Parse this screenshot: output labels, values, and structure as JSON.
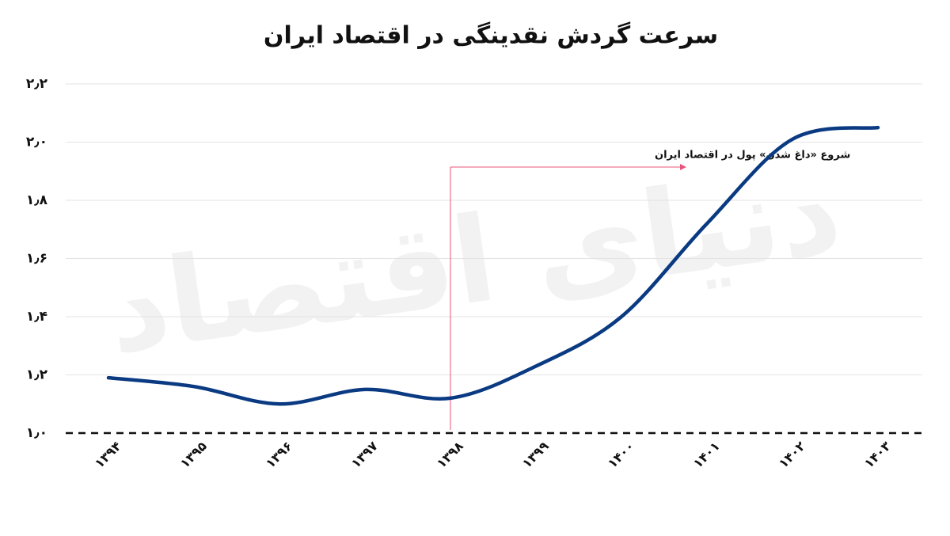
{
  "chart_data": {
    "type": "line",
    "title": "سرعت گردش نقدینگی در  اقتصاد ایران",
    "watermark": "دنیای اقتصاد",
    "categories": [
      "۱۳۹۴",
      "۱۳۹۵",
      "۱۳۹۶",
      "۱۳۹۷",
      "۱۳۹۸",
      "۱۳۹۹",
      "۱۴۰۰",
      "۱۴۰۱",
      "۱۴۰۲",
      "۱۴۰۳"
    ],
    "series": [
      {
        "color": "#0a3a82",
        "values": [
          1.19,
          1.16,
          1.1,
          1.15,
          1.12,
          1.23,
          1.4,
          1.72,
          2.01,
          2.05
        ]
      }
    ],
    "ylim": [
      1.0,
      2.2
    ],
    "yticks": [
      {
        "value": 1.0,
        "label": "۱٫۰"
      },
      {
        "value": 1.2,
        "label": "۱٫۲"
      },
      {
        "value": 1.4,
        "label": "۱٫۴"
      },
      {
        "value": 1.6,
        "label": "۱٫۶"
      },
      {
        "value": 1.8,
        "label": "۱٫۸"
      },
      {
        "value": 2.0,
        "label": "۲٫۰"
      },
      {
        "value": 2.2,
        "label": "۲٫۲"
      }
    ],
    "grid": true,
    "annotation": {
      "text": "شروع «داغ شدن» پول در اقتصاد ایران",
      "x": "۱۳۹۸",
      "color": "#e8557a"
    }
  }
}
